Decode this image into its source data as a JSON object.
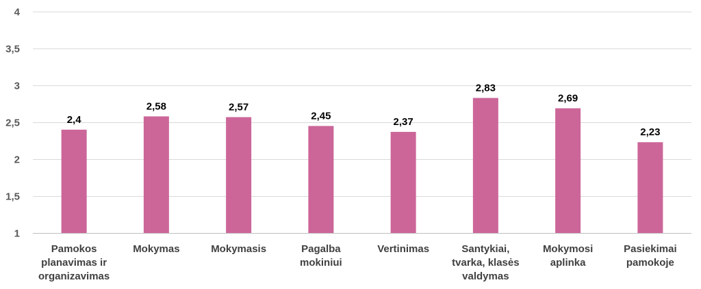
{
  "chart_data": {
    "type": "bar",
    "categories": [
      [
        "Pamokos",
        "planavimas ir",
        "organizavimas"
      ],
      [
        "Mokymas"
      ],
      [
        "Mokymasis"
      ],
      [
        "Pagalba",
        "mokiniui"
      ],
      [
        "Vertinimas"
      ],
      [
        "Santykiai,",
        "tvarka, klasės",
        "valdymas"
      ],
      [
        "Mokymosi",
        "aplinka"
      ],
      [
        "Pasiekimai",
        "pamokoje"
      ]
    ],
    "values": [
      2.4,
      2.58,
      2.57,
      2.45,
      2.37,
      2.83,
      2.69,
      2.23
    ],
    "value_labels": [
      "2,4",
      "2,58",
      "2,57",
      "2,45",
      "2,37",
      "2,83",
      "2,69",
      "2,23"
    ],
    "ylim": [
      1,
      4
    ],
    "yticks": [
      1,
      1.5,
      2,
      2.5,
      3,
      3.5,
      4
    ],
    "ytick_labels": [
      "1",
      "1,5",
      "2",
      "2,5",
      "3",
      "3,5",
      "4"
    ],
    "grid": true,
    "bar_color": "#cc6699",
    "title": "",
    "xlabel": "",
    "ylabel": ""
  }
}
